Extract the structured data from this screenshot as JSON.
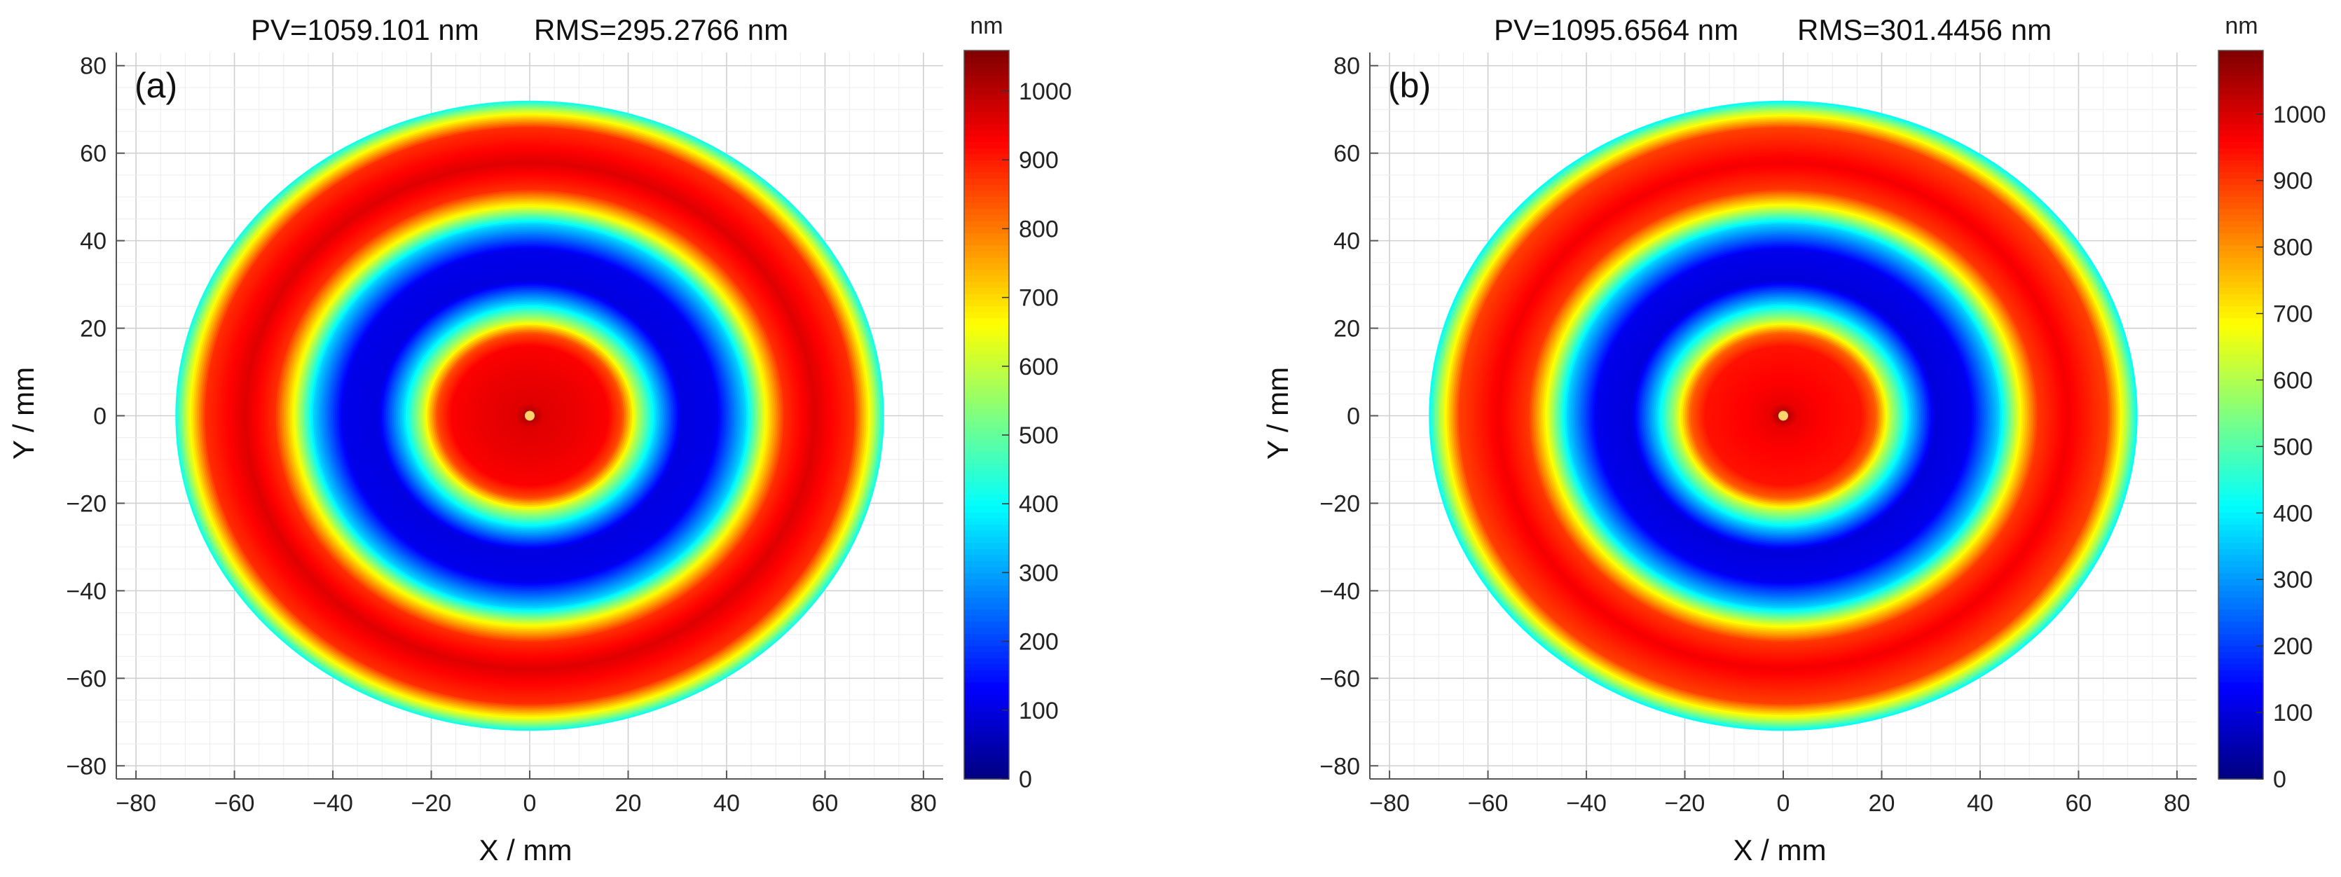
{
  "chart_data": [
    {
      "type": "heatmap",
      "panel_label": "(a)",
      "title_pv": "PV=1059.101 nm",
      "title_rms": "RMS=295.2766 nm",
      "xlabel": "X / mm",
      "ylabel": "Y / mm",
      "xlim": [
        -84,
        84
      ],
      "ylim": [
        -83,
        83
      ],
      "xticks": [
        -80,
        -60,
        -40,
        -20,
        0,
        20,
        40,
        60,
        80
      ],
      "yticks": [
        -80,
        -60,
        -40,
        -20,
        0,
        20,
        40,
        60,
        80
      ],
      "grid": true,
      "clim": [
        0,
        1059.101
      ],
      "colorbar_unit": "nm",
      "colorbar_ticks": [
        0,
        100,
        200,
        300,
        400,
        500,
        600,
        700,
        800,
        900,
        1000
      ],
      "colormap": "jet",
      "aperture_radius_mm": 72,
      "radial_profile": {
        "r_mm": [
          0,
          3,
          8,
          16,
          19,
          22,
          26,
          31,
          38,
          44,
          48,
          52,
          58,
          66,
          70,
          72
        ],
        "value": [
          1040,
          960,
          950,
          930,
          850,
          600,
          350,
          100,
          110,
          350,
          650,
          880,
          960,
          880,
          600,
          420
        ]
      }
    },
    {
      "type": "heatmap",
      "panel_label": "(b)",
      "title_pv": "PV=1095.6564 nm",
      "title_rms": "RMS=301.4456 nm",
      "xlabel": "X / mm",
      "ylabel": "Y / mm",
      "xlim": [
        -84,
        84
      ],
      "ylim": [
        -83,
        83
      ],
      "xticks": [
        -80,
        -60,
        -40,
        -20,
        0,
        20,
        40,
        60,
        80
      ],
      "yticks": [
        -80,
        -60,
        -40,
        -20,
        0,
        20,
        40,
        60,
        80
      ],
      "grid": true,
      "clim": [
        0,
        1095.6564
      ],
      "colorbar_unit": "nm",
      "colorbar_ticks": [
        0,
        100,
        200,
        300,
        400,
        500,
        600,
        700,
        800,
        900,
        1000
      ],
      "colormap": "jet",
      "aperture_radius_mm": 72,
      "radial_profile": {
        "r_mm": [
          0,
          3,
          8,
          16,
          19,
          22,
          26,
          31,
          38,
          44,
          48,
          52,
          58,
          66,
          70,
          72
        ],
        "value": [
          1080,
          980,
          960,
          940,
          860,
          610,
          360,
          100,
          115,
          360,
          660,
          900,
          970,
          890,
          600,
          420
        ]
      }
    }
  ]
}
